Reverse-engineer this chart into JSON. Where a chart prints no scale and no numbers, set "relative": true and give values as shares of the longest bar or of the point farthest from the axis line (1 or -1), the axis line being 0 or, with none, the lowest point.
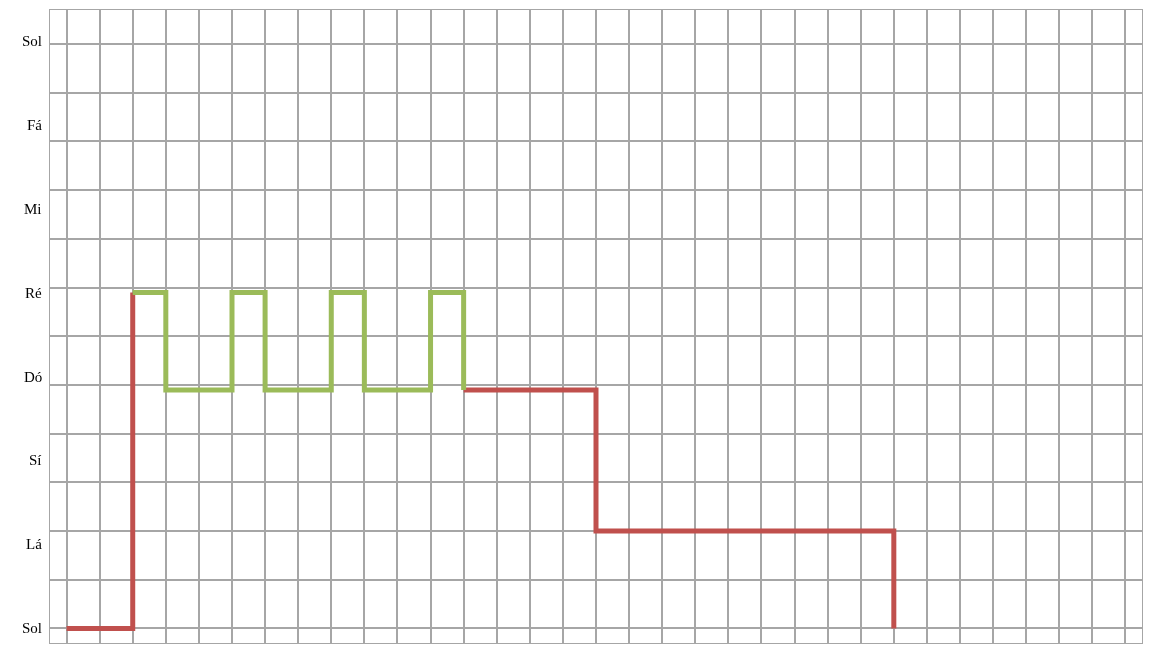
{
  "chart_data": {
    "type": "step",
    "categories": [
      null,
      null,
      null,
      null,
      null,
      null,
      null,
      null,
      null,
      null,
      null,
      null,
      null,
      null,
      null,
      null,
      null,
      null,
      null,
      null,
      null,
      null,
      null,
      null,
      null,
      null,
      null,
      null,
      null,
      null,
      null,
      null,
      null
    ],
    "series": [
      {
        "color": "#c0504d",
        "values": [
          0,
          0,
          1,
          null,
          null,
          null,
          null,
          null,
          null,
          null,
          null,
          null,
          0.71,
          0.71,
          0.71,
          0.71,
          0.29,
          0.29,
          0.29,
          0.29,
          0.29,
          0.29,
          0.29,
          0.29,
          0.29,
          0,
          null,
          null,
          null,
          null,
          null,
          null,
          null
        ]
      },
      {
        "color": "#9bbb59",
        "values": [
          null,
          null,
          1,
          0.71,
          0.71,
          1,
          0.71,
          0.71,
          1,
          0.71,
          0.71,
          1,
          0.71,
          null,
          null,
          null,
          null,
          null,
          null,
          null,
          null,
          null,
          null,
          null,
          null,
          null,
          null,
          null,
          null,
          null,
          null,
          null,
          null
        ]
      }
    ],
    "relative": true,
    "annotations": [
      "Sol",
      "Fá",
      "Mi",
      "Ré",
      "Dó",
      "Sí",
      "Lá",
      "Sol"
    ],
    "grid": true,
    "marker": "none",
    "line_style": "solid"
  }
}
